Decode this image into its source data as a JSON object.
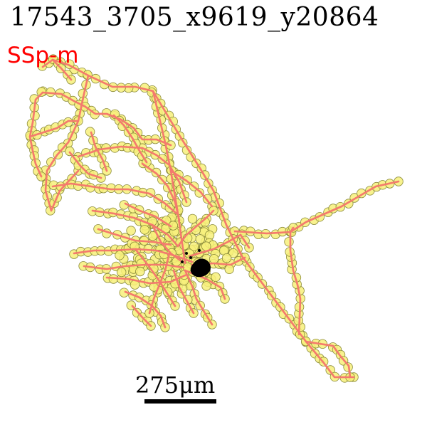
{
  "header": {
    "title": "17543_3705_x9619_y20864"
  },
  "annotation": {
    "region_label": "SSp-m"
  },
  "scale": {
    "label": "275μm"
  },
  "colors": {
    "branch": "#f47a6e",
    "node_fill": "#f7f07a",
    "node_stroke": "#8a8a3a",
    "soma": "#000000",
    "region_label": "#ff0000"
  }
}
